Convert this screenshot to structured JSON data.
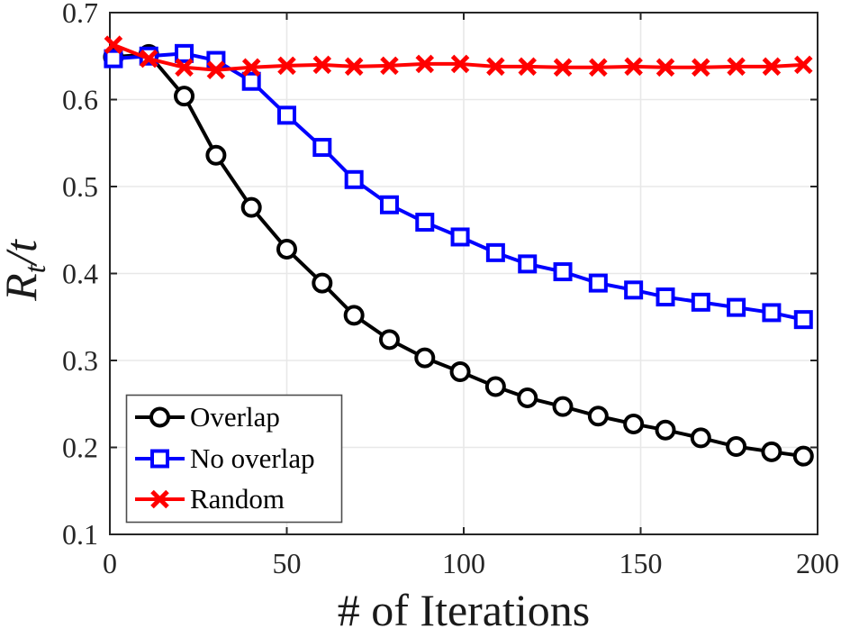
{
  "chart_data": {
    "type": "line",
    "title": "",
    "xlabel": "# of Iterations",
    "ylabel": "Rt/t",
    "ylabel_parts": {
      "main": "R",
      "sub": "t",
      "rest": "/t"
    },
    "xlim": [
      0,
      200
    ],
    "ylim": [
      0.1,
      0.7
    ],
    "xticks": [
      0,
      50,
      100,
      150,
      200
    ],
    "yticks": [
      0.1,
      0.2,
      0.3,
      0.4,
      0.5,
      0.6,
      0.7
    ],
    "grid": true,
    "legend_position": "bottom-left",
    "x": [
      1,
      11,
      21,
      30,
      40,
      50,
      60,
      69,
      79,
      89,
      99,
      109,
      118,
      128,
      138,
      148,
      157,
      167,
      177,
      187,
      196
    ],
    "series": [
      {
        "name": "Overlap",
        "color": "#000000",
        "marker": "circle",
        "values": [
          0.649,
          0.652,
          0.604,
          0.536,
          0.476,
          0.428,
          0.389,
          0.352,
          0.324,
          0.303,
          0.287,
          0.27,
          0.257,
          0.247,
          0.236,
          0.227,
          0.22,
          0.211,
          0.201,
          0.195,
          0.19
        ]
      },
      {
        "name": "No overlap",
        "color": "#0000ff",
        "marker": "square",
        "values": [
          0.647,
          0.65,
          0.653,
          0.645,
          0.621,
          0.582,
          0.545,
          0.508,
          0.479,
          0.459,
          0.442,
          0.424,
          0.411,
          0.402,
          0.389,
          0.381,
          0.373,
          0.367,
          0.361,
          0.355,
          0.347
        ]
      },
      {
        "name": "Random",
        "color": "#ff0000",
        "marker": "x",
        "values": [
          0.663,
          0.647,
          0.637,
          0.634,
          0.637,
          0.639,
          0.64,
          0.638,
          0.639,
          0.641,
          0.641,
          0.638,
          0.638,
          0.637,
          0.637,
          0.638,
          0.637,
          0.637,
          0.638,
          0.638,
          0.64
        ]
      }
    ]
  },
  "colors": {
    "axis": "#262626",
    "grid": "#e8e8e8",
    "tick_label": "#262626",
    "legend_border": "#4d4d4d",
    "background": "#ffffff"
  }
}
